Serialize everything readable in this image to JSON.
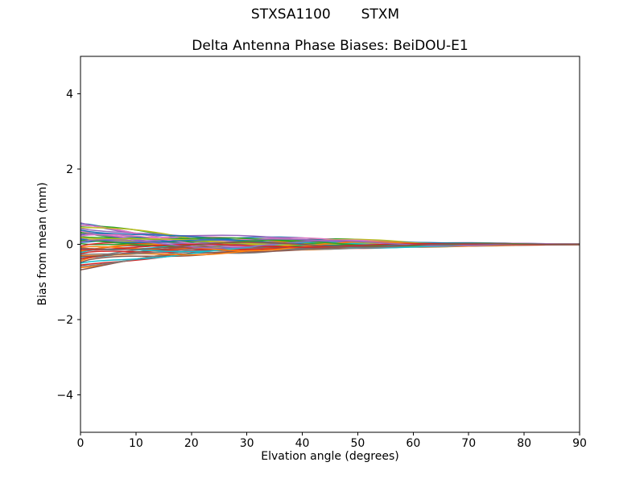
{
  "chart_data": {
    "type": "line",
    "suptitle": "STXSA1100       STXM",
    "title": "Delta Antenna Phase Biases: BeiDOU-E1",
    "xlabel": "Elvation angle (degrees)",
    "ylabel": "Bias from mean (mm)",
    "xlim": [
      0,
      90
    ],
    "ylim": [
      -5,
      5
    ],
    "xticks": [
      0,
      10,
      20,
      30,
      40,
      50,
      60,
      70,
      80,
      90
    ],
    "xtick_labels": [
      "0",
      "10",
      "20",
      "30",
      "40",
      "50",
      "60",
      "70",
      "80",
      "90"
    ],
    "yticks": [
      -4,
      -2,
      0,
      2,
      4
    ],
    "ytick_labels": [
      "−4",
      "−2",
      "0",
      "2",
      "4"
    ],
    "grid": false,
    "legend_position": "none",
    "background_color": "#ffffff",
    "spine_color": "#000000",
    "line_width": 1.5,
    "n_lines": 46,
    "palette": [
      "#1f77b4",
      "#ff7f0e",
      "#2ca02c",
      "#d62728",
      "#9467bd",
      "#8c564b",
      "#e377c2",
      "#7f7f7f",
      "#bcbd22",
      "#17becf"
    ],
    "x_sample_deg": [
      0,
      5,
      10,
      15,
      20,
      25,
      30,
      35,
      40,
      45,
      50,
      55,
      60,
      65,
      70,
      75,
      80,
      85,
      90
    ],
    "envelope_mm": {
      "upper": [
        0.57,
        0.5,
        0.42,
        0.34,
        0.28,
        0.23,
        0.22,
        0.18,
        0.15,
        0.16,
        0.13,
        0.13,
        0.14,
        0.12,
        0.1,
        0.08,
        0.05,
        0.03,
        0.01
      ],
      "lower": [
        -0.68,
        -0.6,
        -0.49,
        -0.39,
        -0.31,
        -0.26,
        -0.21,
        -0.16,
        -0.13,
        -0.13,
        -0.12,
        -0.1,
        -0.09,
        -0.08,
        -0.06,
        -0.05,
        -0.04,
        -0.02,
        -0.01
      ]
    },
    "lines_start_amp_phase": [
      [
        0.55,
        0.073,
        2.4
      ],
      [
        -0.62,
        0.047,
        4.8
      ],
      [
        0.48,
        0.09,
        0.92
      ],
      [
        -0.55,
        0.063,
        3.32
      ],
      [
        0.42,
        0.036,
        5.72
      ],
      [
        -0.48,
        0.08,
        1.83
      ],
      [
        0.36,
        0.053,
        4.23
      ],
      [
        -0.42,
        0.096,
        0.35
      ],
      [
        0.3,
        0.069,
        2.75
      ],
      [
        -0.36,
        0.043,
        5.15
      ],
      [
        0.25,
        0.086,
        1.27
      ],
      [
        -0.3,
        0.059,
        3.67
      ],
      [
        0.2,
        0.032,
        6.07
      ],
      [
        -0.25,
        0.076,
        2.19
      ],
      [
        0.16,
        0.049,
        4.59
      ],
      [
        -0.2,
        0.092,
        0.7
      ],
      [
        0.12,
        0.065,
        3.1
      ],
      [
        -0.16,
        0.039,
        5.5
      ],
      [
        0.08,
        0.082,
        1.62
      ],
      [
        -0.12,
        0.055,
        4.02
      ],
      [
        0.05,
        0.098,
        0.14
      ],
      [
        -0.08,
        0.072,
        2.54
      ],
      [
        0.02,
        0.045,
        4.94
      ],
      [
        -0.05,
        0.088,
        1.05
      ],
      [
        0.57,
        0.062,
        3.45
      ],
      [
        -0.68,
        0.035,
        5.85
      ],
      [
        0.5,
        0.078,
        1.97
      ],
      [
        -0.58,
        0.051,
        4.37
      ],
      [
        0.44,
        0.095,
        0.49
      ],
      [
        -0.5,
        0.068,
        2.89
      ],
      [
        0.38,
        0.041,
        5.29
      ],
      [
        -0.44,
        0.084,
        1.4
      ],
      [
        0.32,
        0.058,
        3.8
      ],
      [
        -0.38,
        0.031,
        6.2
      ],
      [
        0.27,
        0.074,
        2.32
      ],
      [
        -0.32,
        0.047,
        4.72
      ],
      [
        0.22,
        0.091,
        0.84
      ],
      [
        -0.27,
        0.064,
        3.24
      ],
      [
        0.18,
        0.037,
        5.64
      ],
      [
        -0.22,
        0.08,
        1.76
      ],
      [
        0.14,
        0.054,
        4.16
      ],
      [
        -0.18,
        0.097,
        0.27
      ],
      [
        0.1,
        0.07,
        2.67
      ],
      [
        -0.14,
        0.043,
        5.07
      ],
      [
        0.06,
        0.087,
        1.19
      ],
      [
        -0.1,
        0.06,
        3.59
      ]
    ]
  }
}
